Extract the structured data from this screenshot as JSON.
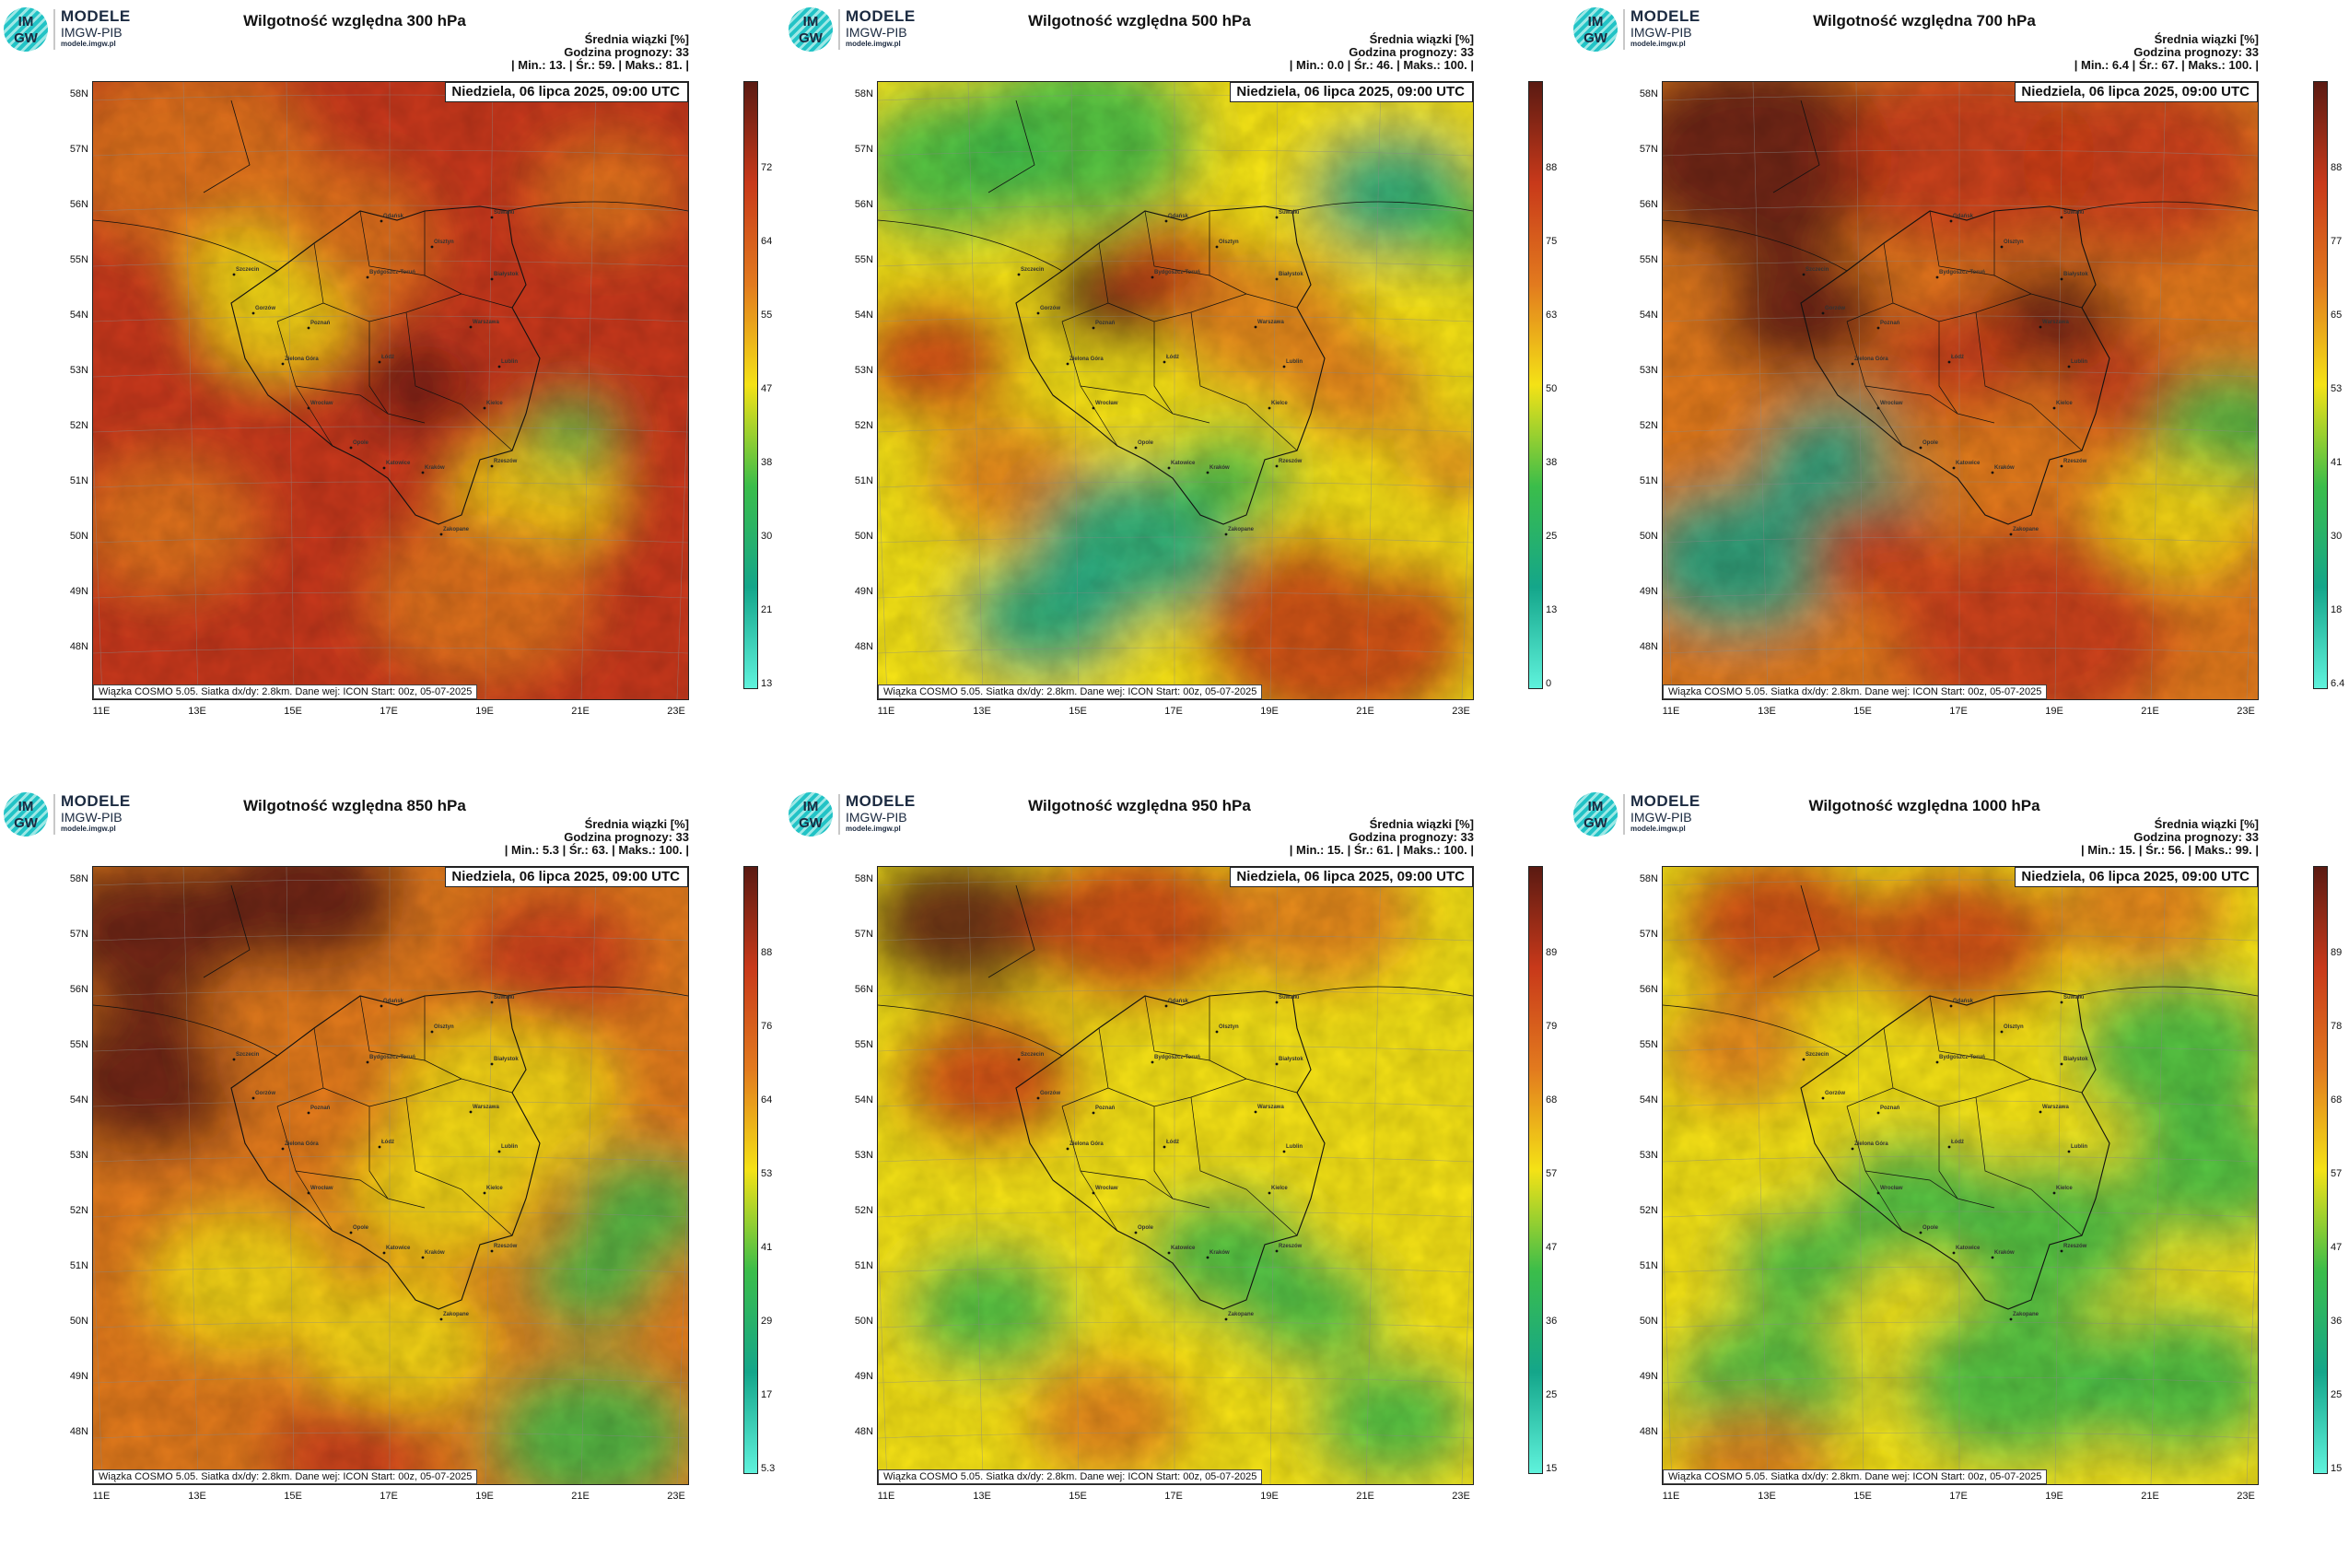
{
  "logo": {
    "mark_line1": "IM",
    "mark_line2": "GW",
    "title": "MODELE",
    "subtitle": "IMGW-PIB",
    "url": "modele.imgw.pl"
  },
  "common": {
    "stat_title": "Średnia wiązki [%]",
    "forecast_hour": "Godzina prognozy: 33",
    "date": "Niedziela, 06 lipca 2025, 09:00 UTC",
    "credit": "Wiązka COSMO 5.05. Siatka dx/dy: 2.8km. Dane wej: ICON Start: 00z, 05-07-2025",
    "lat_labels": [
      "58N",
      "57N",
      "56N",
      "55N",
      "54N",
      "53N",
      "52N",
      "51N",
      "50N",
      "49N",
      "48N"
    ],
    "lon_labels": [
      "11E",
      "13E",
      "15E",
      "17E",
      "19E",
      "21E",
      "23E"
    ],
    "cities": [
      "Gdańsk",
      "Olsztyn",
      "Suwałki",
      "Szczecin",
      "Bydgoszcz-Toruń",
      "Białystok",
      "Gorzów",
      "Poznań",
      "Warszawa",
      "Zielona Góra",
      "Łódź",
      "Lublin",
      "Wrocław",
      "Kielce",
      "Opole",
      "Katowice",
      "Kraków",
      "Rzeszów",
      "Zakopane"
    ]
  },
  "panels": [
    {
      "title": "Wilgotność względna 300 hPa",
      "stats": "| Min.: 13. | Śr.: 59. | Maks.: 81. |",
      "colorbar": [
        "72",
        "64",
        "55",
        "47",
        "38",
        "30",
        "21",
        "13"
      ],
      "colormap": "c300"
    },
    {
      "title": "Wilgotność względna 500 hPa",
      "stats": "| Min.: 0.0 | Śr.: 46. | Maks.: 100. |",
      "colorbar": [
        "88",
        "75",
        "63",
        "50",
        "38",
        "25",
        "13",
        "0"
      ],
      "colormap": "c500"
    },
    {
      "title": "Wilgotność względna 700 hPa",
      "stats": "| Min.: 6.4 | Śr.: 67. | Maks.: 100. |",
      "colorbar": [
        "88",
        "77",
        "65",
        "53",
        "41",
        "30",
        "18",
        "6.4"
      ],
      "colormap": "c700"
    },
    {
      "title": "Wilgotność względna 850 hPa",
      "stats": "| Min.: 5.3 | Śr.: 63. | Maks.: 100. |",
      "colorbar": [
        "88",
        "76",
        "64",
        "53",
        "41",
        "29",
        "17",
        "5.3"
      ],
      "colormap": "c850"
    },
    {
      "title": "Wilgotność względna 950 hPa",
      "stats": "| Min.: 15. | Śr.: 61. | Maks.: 100. |",
      "colorbar": [
        "89",
        "79",
        "68",
        "57",
        "47",
        "36",
        "25",
        "15"
      ],
      "colormap": "c950"
    },
    {
      "title": "Wilgotność względna 1000 hPa",
      "stats": "| Min.: 15. | Śr.: 56. | Maks.: 99. |",
      "colorbar": [
        "89",
        "78",
        "68",
        "57",
        "47",
        "36",
        "25",
        "15"
      ],
      "colormap": "c1000"
    }
  ],
  "colors": {
    "dark": "#5a1a12",
    "red": "#c8391a",
    "orange": "#e27a1e",
    "yellow": "#f4e216",
    "green": "#3bbd4a",
    "teal": "#14a68a",
    "cyan": "#5ff2dc"
  }
}
